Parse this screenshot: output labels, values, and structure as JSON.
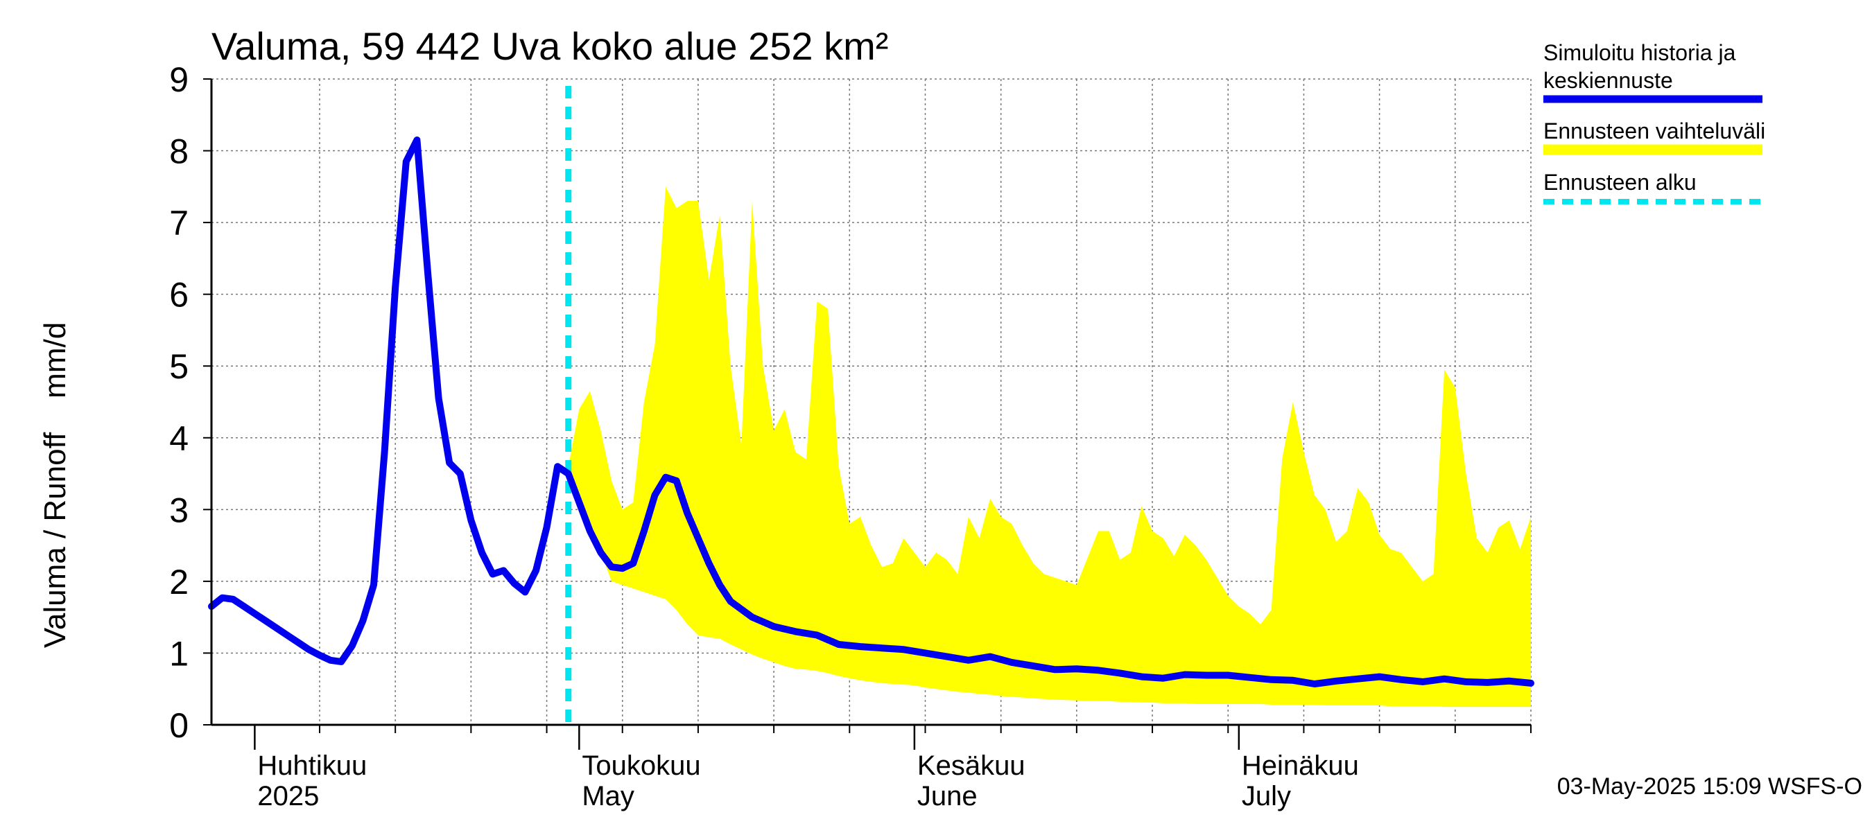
{
  "chart_data": {
    "type": "area",
    "title": "Valuma, 59 442 Uva koko alue 252 km²",
    "ylabel": "Valuma / Runoff    mm/d",
    "ylim": [
      0,
      9
    ],
    "y_ticks": [
      0,
      1,
      2,
      3,
      4,
      5,
      6,
      7,
      8,
      9
    ],
    "xlim": [
      "2025-03-28",
      "2025-07-28"
    ],
    "x_month_labels": [
      {
        "date": "2025-04-01",
        "line1": "Huhtikuu",
        "line2": "2025"
      },
      {
        "date": "2025-05-01",
        "line1": "Toukokuu",
        "line2": "May"
      },
      {
        "date": "2025-06-01",
        "line1": "Kesäkuu",
        "line2": "June"
      },
      {
        "date": "2025-07-01",
        "line1": "Heinäkuu",
        "line2": "July"
      }
    ],
    "x_week_ticks": [
      "2025-04-07",
      "2025-04-14",
      "2025-04-21",
      "2025-04-28",
      "2025-05-05",
      "2025-05-12",
      "2025-05-19",
      "2025-05-26",
      "2025-06-02",
      "2025-06-09",
      "2025-06-16",
      "2025-06-23",
      "2025-06-30",
      "2025-07-07",
      "2025-07-14",
      "2025-07-21",
      "2025-07-28"
    ],
    "grid": true,
    "legend_placement": "right",
    "forecast_start": "2025-04-30",
    "timestamp": "03-May-2025 15:09 WSFS-O",
    "series": [
      {
        "name": "Simuloitu historia ja keskiennuste",
        "role": "median",
        "color": "#0000ee",
        "x": [
          "2025-03-28",
          "2025-03-29",
          "2025-03-30",
          "2025-03-31",
          "2025-04-01",
          "2025-04-02",
          "2025-04-03",
          "2025-04-04",
          "2025-04-05",
          "2025-04-06",
          "2025-04-07",
          "2025-04-08",
          "2025-04-09",
          "2025-04-10",
          "2025-04-11",
          "2025-04-12",
          "2025-04-13",
          "2025-04-14",
          "2025-04-15",
          "2025-04-16",
          "2025-04-17",
          "2025-04-18",
          "2025-04-19",
          "2025-04-20",
          "2025-04-21",
          "2025-04-22",
          "2025-04-23",
          "2025-04-24",
          "2025-04-25",
          "2025-04-26",
          "2025-04-27",
          "2025-04-28",
          "2025-04-29",
          "2025-04-30",
          "2025-05-01",
          "2025-05-02",
          "2025-05-03",
          "2025-05-04",
          "2025-05-05",
          "2025-05-06",
          "2025-05-07",
          "2025-05-08",
          "2025-05-09",
          "2025-05-10",
          "2025-05-11",
          "2025-05-12",
          "2025-05-13",
          "2025-05-14",
          "2025-05-15",
          "2025-05-17",
          "2025-05-19",
          "2025-05-21",
          "2025-05-23",
          "2025-05-25",
          "2025-05-27",
          "2025-05-29",
          "2025-05-31",
          "2025-06-02",
          "2025-06-04",
          "2025-06-06",
          "2025-06-08",
          "2025-06-10",
          "2025-06-12",
          "2025-06-14",
          "2025-06-16",
          "2025-06-18",
          "2025-06-20",
          "2025-06-22",
          "2025-06-24",
          "2025-06-26",
          "2025-06-28",
          "2025-06-30",
          "2025-07-02",
          "2025-07-04",
          "2025-07-06",
          "2025-07-08",
          "2025-07-10",
          "2025-07-12",
          "2025-07-14",
          "2025-07-16",
          "2025-07-18",
          "2025-07-20",
          "2025-07-22",
          "2025-07-24",
          "2025-07-26",
          "2025-07-28"
        ],
        "values": [
          1.65,
          1.77,
          1.75,
          1.65,
          1.55,
          1.45,
          1.35,
          1.25,
          1.15,
          1.05,
          0.97,
          0.9,
          0.88,
          1.1,
          1.45,
          1.95,
          3.8,
          6.1,
          7.85,
          8.15,
          6.3,
          4.55,
          3.65,
          3.5,
          2.85,
          2.4,
          2.1,
          2.15,
          1.97,
          1.85,
          2.15,
          2.75,
          3.6,
          3.5,
          3.1,
          2.7,
          2.4,
          2.2,
          2.18,
          2.25,
          2.7,
          3.2,
          3.45,
          3.4,
          2.95,
          2.6,
          2.25,
          1.95,
          1.72,
          1.5,
          1.37,
          1.3,
          1.25,
          1.12,
          1.09,
          1.07,
          1.05,
          1.0,
          0.95,
          0.9,
          0.95,
          0.87,
          0.82,
          0.77,
          0.78,
          0.76,
          0.72,
          0.67,
          0.65,
          0.7,
          0.69,
          0.69,
          0.66,
          0.63,
          0.62,
          0.57,
          0.61,
          0.64,
          0.67,
          0.63,
          0.6,
          0.64,
          0.6,
          0.59,
          0.61,
          0.58
        ]
      },
      {
        "name": "Ennusteen vaihteluväli",
        "role": "range",
        "color": "#ffff00",
        "x": [
          "2025-04-30",
          "2025-05-01",
          "2025-05-02",
          "2025-05-03",
          "2025-05-04",
          "2025-05-05",
          "2025-05-06",
          "2025-05-07",
          "2025-05-08",
          "2025-05-09",
          "2025-05-10",
          "2025-05-11",
          "2025-05-12",
          "2025-05-13",
          "2025-05-14",
          "2025-05-15",
          "2025-05-16",
          "2025-05-17",
          "2025-05-18",
          "2025-05-19",
          "2025-05-20",
          "2025-05-21",
          "2025-05-22",
          "2025-05-23",
          "2025-05-24",
          "2025-05-25",
          "2025-05-26",
          "2025-05-27",
          "2025-05-28",
          "2025-05-29",
          "2025-05-30",
          "2025-05-31",
          "2025-06-01",
          "2025-06-02",
          "2025-06-03",
          "2025-06-04",
          "2025-06-05",
          "2025-06-06",
          "2025-06-07",
          "2025-06-08",
          "2025-06-09",
          "2025-06-10",
          "2025-06-11",
          "2025-06-12",
          "2025-06-13",
          "2025-06-14",
          "2025-06-16",
          "2025-06-18",
          "2025-06-19",
          "2025-06-20",
          "2025-06-21",
          "2025-06-22",
          "2025-06-23",
          "2025-06-24",
          "2025-06-25",
          "2025-06-26",
          "2025-06-27",
          "2025-06-28",
          "2025-06-30",
          "2025-07-01",
          "2025-07-02",
          "2025-07-03",
          "2025-07-04",
          "2025-07-05",
          "2025-07-06",
          "2025-07-07",
          "2025-07-08",
          "2025-07-09",
          "2025-07-10",
          "2025-07-11",
          "2025-07-12",
          "2025-07-13",
          "2025-07-14",
          "2025-07-15",
          "2025-07-16",
          "2025-07-17",
          "2025-07-18",
          "2025-07-19",
          "2025-07-20",
          "2025-07-21",
          "2025-07-22",
          "2025-07-23",
          "2025-07-24",
          "2025-07-25",
          "2025-07-26",
          "2025-07-27",
          "2025-07-28"
        ],
        "upper": [
          3.6,
          4.4,
          4.65,
          4.1,
          3.4,
          3.0,
          3.1,
          4.5,
          5.3,
          7.5,
          7.2,
          7.3,
          7.3,
          6.2,
          7.1,
          5.0,
          3.9,
          7.3,
          5.0,
          4.1,
          4.4,
          3.8,
          3.7,
          5.9,
          5.8,
          3.6,
          2.8,
          2.9,
          2.5,
          2.2,
          2.25,
          2.6,
          2.4,
          2.2,
          2.4,
          2.3,
          2.1,
          2.9,
          2.6,
          3.15,
          2.9,
          2.8,
          2.5,
          2.25,
          2.1,
          2.05,
          1.95,
          2.7,
          2.7,
          2.3,
          2.4,
          3.05,
          2.7,
          2.6,
          2.35,
          2.65,
          2.5,
          2.3,
          1.8,
          1.65,
          1.55,
          1.4,
          1.6,
          3.7,
          4.5,
          3.8,
          3.2,
          3.0,
          2.55,
          2.7,
          3.3,
          3.1,
          2.65,
          2.45,
          2.4,
          2.2,
          2.0,
          2.1,
          4.95,
          4.7,
          3.5,
          2.6,
          2.4,
          2.75,
          2.85,
          2.45,
          2.9
        ],
        "lower": [
          3.55,
          3.05,
          2.7,
          2.4,
          2.0,
          1.95,
          1.9,
          1.85,
          1.8,
          1.75,
          1.6,
          1.4,
          1.25,
          1.22,
          1.2,
          1.12,
          1.05,
          0.98,
          0.92,
          0.87,
          0.82,
          0.78,
          0.77,
          0.75,
          0.72,
          0.68,
          0.65,
          0.62,
          0.6,
          0.58,
          0.57,
          0.56,
          0.55,
          0.52,
          0.5,
          0.48,
          0.46,
          0.45,
          0.43,
          0.42,
          0.4,
          0.39,
          0.38,
          0.37,
          0.36,
          0.35,
          0.34,
          0.33,
          0.33,
          0.32,
          0.32,
          0.31,
          0.31,
          0.3,
          0.3,
          0.3,
          0.29,
          0.29,
          0.29,
          0.29,
          0.29,
          0.29,
          0.28,
          0.28,
          0.28,
          0.28,
          0.28,
          0.27,
          0.27,
          0.27,
          0.27,
          0.27,
          0.27,
          0.26,
          0.26,
          0.26,
          0.26,
          0.26,
          0.25,
          0.25,
          0.25,
          0.25,
          0.25,
          0.25,
          0.25,
          0.25,
          0.25
        ]
      },
      {
        "name": "Ennusteen alku",
        "role": "forecast-start",
        "color": "#00e5ee"
      }
    ]
  }
}
